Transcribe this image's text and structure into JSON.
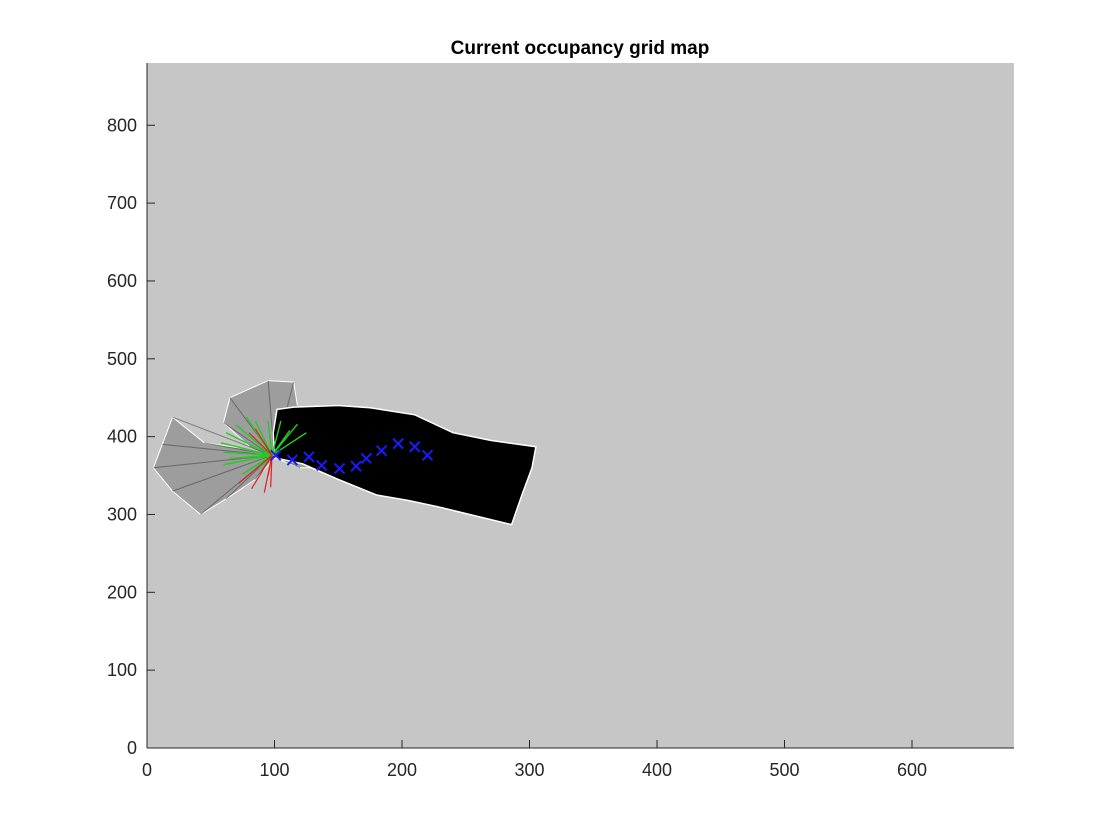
{
  "chart_data": {
    "type": "scatter",
    "title": "Current occupancy grid map",
    "xlabel": "",
    "ylabel": "",
    "xlim": [
      0,
      680
    ],
    "ylim": [
      0,
      880
    ],
    "x_ticks": [
      0,
      100,
      200,
      300,
      400,
      500,
      600
    ],
    "y_ticks": [
      0,
      100,
      200,
      300,
      400,
      500,
      600,
      700,
      800
    ],
    "grid": false,
    "legend": "none",
    "colors": {
      "unknown_background": "#c6c6c6",
      "free_space": "#000000",
      "explored_scan_fan": "#6a6a6a",
      "trajectory_marker": "#1a1aff",
      "scan_free_ray": "#22cc22",
      "scan_hit_ray": "#dd2222"
    },
    "free_space_region": [
      [
        100,
        373
      ],
      [
        122,
        365
      ],
      [
        150,
        345
      ],
      [
        180,
        325
      ],
      [
        205,
        318
      ],
      [
        228,
        310
      ],
      [
        258,
        298
      ],
      [
        286,
        287
      ],
      [
        294,
        325
      ],
      [
        302,
        360
      ],
      [
        305,
        387
      ],
      [
        270,
        395
      ],
      [
        240,
        405
      ],
      [
        210,
        428
      ],
      [
        175,
        437
      ],
      [
        150,
        440
      ],
      [
        115,
        438
      ],
      [
        102,
        435
      ],
      [
        99,
        405
      ]
    ],
    "scan_fans": [
      [
        [
          100,
          373
        ],
        [
          80,
          388
        ],
        [
          60,
          418
        ],
        [
          65,
          450
        ],
        [
          95,
          472
        ],
        [
          115,
          470
        ],
        [
          118,
          440
        ],
        [
          110,
          410
        ]
      ],
      [
        [
          100,
          373
        ],
        [
          75,
          385
        ],
        [
          45,
          392
        ],
        [
          20,
          425
        ],
        [
          12,
          390
        ],
        [
          5,
          360
        ],
        [
          20,
          330
        ],
        [
          42,
          300
        ],
        [
          62,
          320
        ],
        [
          85,
          345
        ]
      ],
      [
        [
          100,
          373
        ],
        [
          130,
          392
        ],
        [
          155,
          415
        ],
        [
          170,
          400
        ],
        [
          160,
          375
        ],
        [
          140,
          360
        ],
        [
          120,
          360
        ]
      ]
    ],
    "scan_fan_centers": [
      [
        100,
        373
      ],
      [
        98,
        376
      ],
      [
        97,
        378
      ]
    ],
    "trajectory": [
      {
        "x": 101,
        "y": 376
      },
      {
        "x": 114,
        "y": 370
      },
      {
        "x": 127,
        "y": 374
      },
      {
        "x": 137,
        "y": 363
      },
      {
        "x": 151,
        "y": 359
      },
      {
        "x": 164,
        "y": 362
      },
      {
        "x": 172,
        "y": 372
      },
      {
        "x": 184,
        "y": 382
      },
      {
        "x": 197,
        "y": 391
      },
      {
        "x": 210,
        "y": 387
      },
      {
        "x": 220,
        "y": 376
      }
    ],
    "robot_pose": {
      "x": 98,
      "y": 376
    },
    "scan_rays_free": [
      [
        60,
        380
      ],
      [
        58,
        392
      ],
      [
        60,
        364
      ],
      [
        62,
        405
      ],
      [
        70,
        415
      ],
      [
        75,
        352
      ],
      [
        85,
        420
      ],
      [
        95,
        420
      ],
      [
        105,
        420
      ],
      [
        118,
        416
      ],
      [
        112,
        408
      ],
      [
        78,
        425
      ],
      [
        65,
        372
      ],
      [
        88,
        360
      ],
      [
        125,
        405
      ]
    ],
    "scan_rays_hit": [
      [
        72,
        340
      ],
      [
        82,
        333
      ],
      [
        92,
        328
      ],
      [
        95,
        350
      ],
      [
        85,
        410
      ],
      [
        80,
        405
      ],
      [
        97,
        335
      ]
    ]
  }
}
